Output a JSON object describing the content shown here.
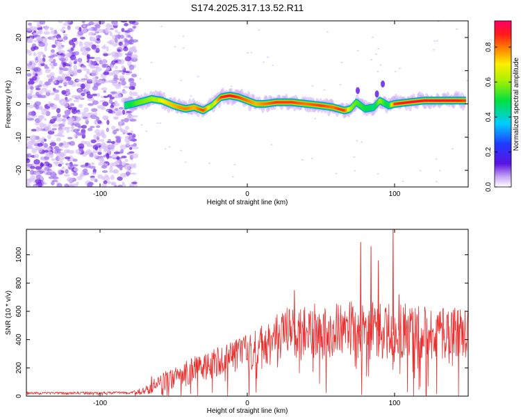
{
  "title": "S174.2025.317.13.52.R11",
  "chart_data": [
    {
      "type": "heatmap",
      "xlabel": "Height of straight line (km)",
      "ylabel": "Frequency (Hz)",
      "xlim": [
        -150,
        150
      ],
      "ylim": [
        -25,
        25
      ],
      "x_ticks": [
        -100,
        0,
        100
      ],
      "x_tick_labels": [
        "-100",
        "0",
        "100"
      ],
      "y_ticks": [
        -20,
        -10,
        0,
        10,
        20
      ],
      "y_tick_labels": [
        "-20",
        "-10",
        "0",
        "10",
        "20"
      ],
      "colorbar": {
        "label": "Normalized spectral amplitude",
        "range": [
          0,
          0.95
        ],
        "ticks": [
          0,
          0.2,
          0.4,
          0.6,
          0.8
        ],
        "tick_labels": [
          "0.0",
          "0.2",
          "0.4",
          "0.6",
          "0.8"
        ]
      },
      "noise_region_x": [
        -150,
        -80
      ],
      "ridge": {
        "x": [
          -83,
          -75,
          -65,
          -58,
          -50,
          -42,
          -36,
          -30,
          -24,
          -18,
          -12,
          -6,
          0,
          6,
          12,
          20,
          30,
          40,
          50,
          58,
          62,
          66,
          70,
          74,
          80,
          86,
          90,
          96,
          100,
          110,
          120,
          130,
          140,
          148
        ],
        "freq": [
          -0.5,
          0.3,
          1.5,
          1.0,
          -0.5,
          -1.5,
          -1.0,
          -2.0,
          -0.5,
          2.0,
          2.5,
          2.0,
          1.0,
          0.0,
          0.0,
          0.5,
          0.5,
          0.0,
          -0.5,
          -1.0,
          -1.5,
          -2.0,
          -1.5,
          0.5,
          -1.5,
          -1.0,
          1.0,
          -0.5,
          0.0,
          0.5,
          1.0,
          1.0,
          1.0,
          1.0
        ],
        "amplitude": [
          0.45,
          0.55,
          0.6,
          0.7,
          0.75,
          0.8,
          0.75,
          0.85,
          0.6,
          0.85,
          0.9,
          0.85,
          0.8,
          0.75,
          0.8,
          0.85,
          0.85,
          0.8,
          0.85,
          0.8,
          0.85,
          0.85,
          0.6,
          0.55,
          0.5,
          0.45,
          0.6,
          0.45,
          0.85,
          0.9,
          0.95,
          0.92,
          0.9,
          0.85
        ]
      }
    },
    {
      "type": "line",
      "xlabel": "Height of straight line (km)",
      "ylabel": "SNR (10 * v/v)",
      "xlim": [
        -150,
        150
      ],
      "ylim": [
        0,
        1180
      ],
      "x_ticks": [
        -100,
        0,
        100
      ],
      "x_tick_labels": [
        "-100",
        "0",
        "100"
      ],
      "y_ticks": [
        0,
        200,
        400,
        600,
        800,
        1000
      ],
      "y_tick_labels": [
        "0",
        "200",
        "400",
        "600",
        "800",
        "1000"
      ],
      "color": "#e8302f",
      "envelope": {
        "x": [
          -150,
          -100,
          -80,
          -70,
          -66,
          -60,
          -50,
          -40,
          -30,
          -20,
          -10,
          0,
          10,
          20,
          25,
          40,
          60,
          80,
          100,
          120,
          150
        ],
        "mean": [
          22,
          22,
          25,
          40,
          60,
          90,
          130,
          170,
          210,
          240,
          270,
          300,
          360,
          420,
          450,
          460,
          470,
          460,
          470,
          450,
          440
        ],
        "spread": [
          8,
          8,
          10,
          25,
          50,
          60,
          80,
          90,
          100,
          110,
          120,
          140,
          150,
          170,
          180,
          190,
          200,
          210,
          200,
          190,
          180
        ]
      },
      "spikes": [
        {
          "x": -65,
          "y": 140
        },
        {
          "x": 32,
          "y": 750
        },
        {
          "x": 77,
          "y": 1090
        },
        {
          "x": 84,
          "y": 1060
        },
        {
          "x": 89,
          "y": 960
        },
        {
          "x": 99,
          "y": 1180
        },
        {
          "x": 103,
          "y": 720
        },
        {
          "x": 140,
          "y": 610
        }
      ]
    }
  ]
}
